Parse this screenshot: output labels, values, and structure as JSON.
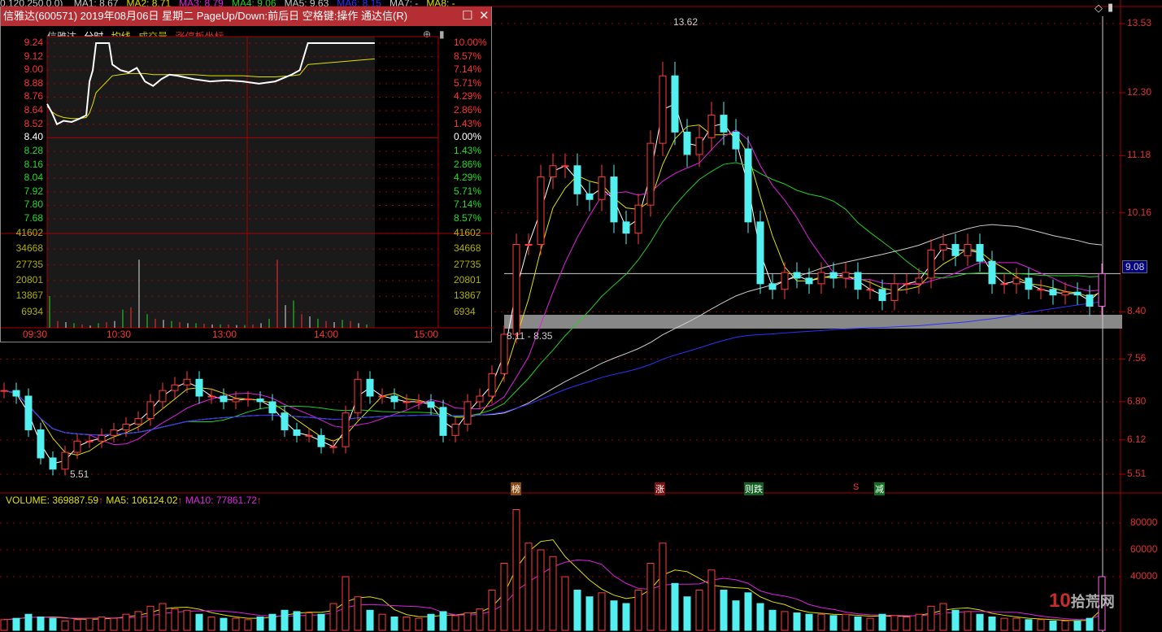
{
  "top_bar": {
    "prefix": "0.120.250.0.0)",
    "ma": [
      {
        "label": "MA1: 8.67",
        "color": "#cccccc"
      },
      {
        "label": "MA2: 8.71",
        "color": "#e0e000"
      },
      {
        "label": "MA3: 8.79",
        "color": "#e020e0"
      },
      {
        "label": "MA4: 9.06",
        "color": "#20d020"
      },
      {
        "label": "MA5: 9.63",
        "color": "#cccccc"
      },
      {
        "label": "MA6: 8.15",
        "color": "#3030ff"
      },
      {
        "label": "MA7: -",
        "color": "#cccccc"
      },
      {
        "label": "MA8: -",
        "color": "#e0e000"
      }
    ]
  },
  "price_axis": {
    "ticks": [
      "13.53",
      "12.30",
      "11.18",
      "10.16",
      "8.40",
      "7.56",
      "6.80",
      "6.12",
      "5.51"
    ],
    "current": "9.08"
  },
  "volume_axis": {
    "ticks": [
      "80000",
      "60000",
      "40000"
    ]
  },
  "annotations": {
    "high": "13.62",
    "low": "5.51",
    "zone": "8.11 - 8.35"
  },
  "event_tags": [
    {
      "text": "榜",
      "color": "#8a4a10"
    },
    {
      "text": "涨",
      "color": "#7a1010"
    },
    {
      "text": "则跌",
      "color": "#106020"
    },
    {
      "text": "S",
      "color": "#000000"
    },
    {
      "text": "减",
      "color": "#107020"
    }
  ],
  "volume_header": {
    "volume": "VOLUME: 369887.59",
    "ma5": "MA5: 106124.02",
    "ma10": "MA10: 77861.72"
  },
  "popup": {
    "title": "信雅达(600571) 2019年08月06日 星期二 PageUp/Down:前后日 空格键:操作 通达信(R)",
    "tabs": [
      "信雅达",
      "分时",
      "均线",
      "成交量",
      "涨停板坐标"
    ],
    "price_ticks": [
      "9.24",
      "9.12",
      "9.00",
      "8.88",
      "8.76",
      "8.64",
      "8.52",
      "8.40",
      "8.28",
      "8.16",
      "8.04",
      "7.92",
      "7.80",
      "7.68"
    ],
    "pct_ticks": [
      "10.00%",
      "8.57%",
      "7.14%",
      "5.71%",
      "4.29%",
      "2.86%",
      "1.43%",
      "0.00%",
      "1.43%",
      "2.86%",
      "4.29%",
      "5.71%",
      "7.14%",
      "8.57%"
    ],
    "vol_ticks": [
      "41602",
      "34668",
      "27735",
      "20801",
      "13867",
      "6934"
    ],
    "time_ticks": [
      "09:30",
      "10:30",
      "13:00",
      "14:00",
      "15:00"
    ],
    "intraday": {
      "minute": [
        0,
        3,
        6,
        10,
        15,
        20,
        24,
        26,
        28,
        30,
        38,
        40,
        45,
        50,
        55,
        60,
        65,
        70,
        75,
        80,
        90,
        100,
        110,
        120,
        130,
        140,
        150,
        155,
        160,
        201
      ],
      "price": [
        8.7,
        8.62,
        8.52,
        8.55,
        8.54,
        8.57,
        8.6,
        8.9,
        9.0,
        9.24,
        9.24,
        9.05,
        9.0,
        8.98,
        9.02,
        8.9,
        8.86,
        8.92,
        8.96,
        8.95,
        8.92,
        8.9,
        8.91,
        8.9,
        8.88,
        8.9,
        8.96,
        9.0,
        9.24,
        9.24
      ],
      "avg": [
        8.68,
        8.63,
        8.6,
        8.58,
        8.57,
        8.57,
        8.58,
        8.62,
        8.7,
        8.8,
        8.92,
        8.95,
        8.96,
        8.97,
        8.97,
        8.97,
        8.96,
        8.96,
        8.96,
        8.96,
        8.96,
        8.95,
        8.95,
        8.95,
        8.94,
        8.94,
        8.95,
        8.96,
        9.05,
        9.1
      ]
    },
    "intraday_volume": [
      14000,
      3000,
      2500,
      2000,
      1500,
      1000,
      2000,
      2500,
      3000,
      8000,
      9000,
      30000,
      6000,
      4000,
      3500,
      3000,
      2500,
      2000,
      2000,
      1800,
      1500,
      1500,
      1500,
      1200,
      1200,
      1500,
      2000,
      4000,
      30000,
      10000,
      12000,
      6000,
      5000,
      4000,
      3000,
      2500,
      3500,
      3000,
      2000,
      1500
    ]
  },
  "chart_data": {
    "type": "candlestick",
    "close": [
      7.0,
      6.9,
      6.3,
      5.8,
      5.6,
      5.9,
      6.1,
      6.1,
      6.2,
      6.3,
      6.4,
      6.5,
      6.8,
      7.0,
      7.1,
      7.2,
      6.9,
      6.9,
      6.8,
      6.85,
      6.85,
      6.8,
      6.6,
      6.3,
      6.2,
      6.2,
      6.0,
      6.0,
      6.6,
      7.2,
      6.9,
      6.9,
      6.8,
      6.8,
      6.8,
      6.7,
      6.2,
      6.4,
      6.8,
      6.9,
      7.3,
      8.0,
      9.6,
      9.6,
      10.8,
      11.0,
      11.0,
      10.5,
      10.4,
      10.8,
      10.0,
      9.8,
      10.3,
      11.4,
      12.6,
      11.6,
      11.2,
      11.5,
      11.9,
      11.6,
      11.3,
      10.0,
      8.9,
      8.8,
      9.1,
      9.0,
      8.9,
      9.1,
      9.0,
      9.1,
      8.8,
      8.8,
      8.6,
      8.9,
      8.9,
      9.0,
      9.5,
      9.6,
      9.4,
      9.6,
      9.3,
      8.9,
      8.9,
      9.0,
      8.8,
      8.8,
      8.7,
      8.75,
      8.7,
      8.5,
      9.08
    ],
    "volume": [
      8000,
      9000,
      12000,
      10000,
      9000,
      7000,
      8000,
      9000,
      10000,
      9000,
      12000,
      14000,
      18000,
      20000,
      16000,
      15000,
      12000,
      10000,
      9000,
      9000,
      8000,
      10000,
      12000,
      15000,
      14000,
      13000,
      12000,
      20000,
      40000,
      25000,
      15000,
      12000,
      10000,
      10000,
      9000,
      12000,
      14000,
      11000,
      13000,
      16000,
      30000,
      50000,
      90000,
      65000,
      60000,
      55000,
      40000,
      30000,
      25000,
      28000,
      22000,
      20000,
      30000,
      50000,
      65000,
      35000,
      25000,
      30000,
      45000,
      30000,
      22000,
      28000,
      20000,
      15000,
      14000,
      13000,
      12000,
      12000,
      11000,
      12000,
      10000,
      9000,
      12000,
      11000,
      10000,
      12000,
      18000,
      20000,
      15000,
      14000,
      12000,
      10000,
      9000,
      9000,
      8000,
      8000,
      7000,
      7000,
      7000,
      9000,
      40000
    ]
  }
}
